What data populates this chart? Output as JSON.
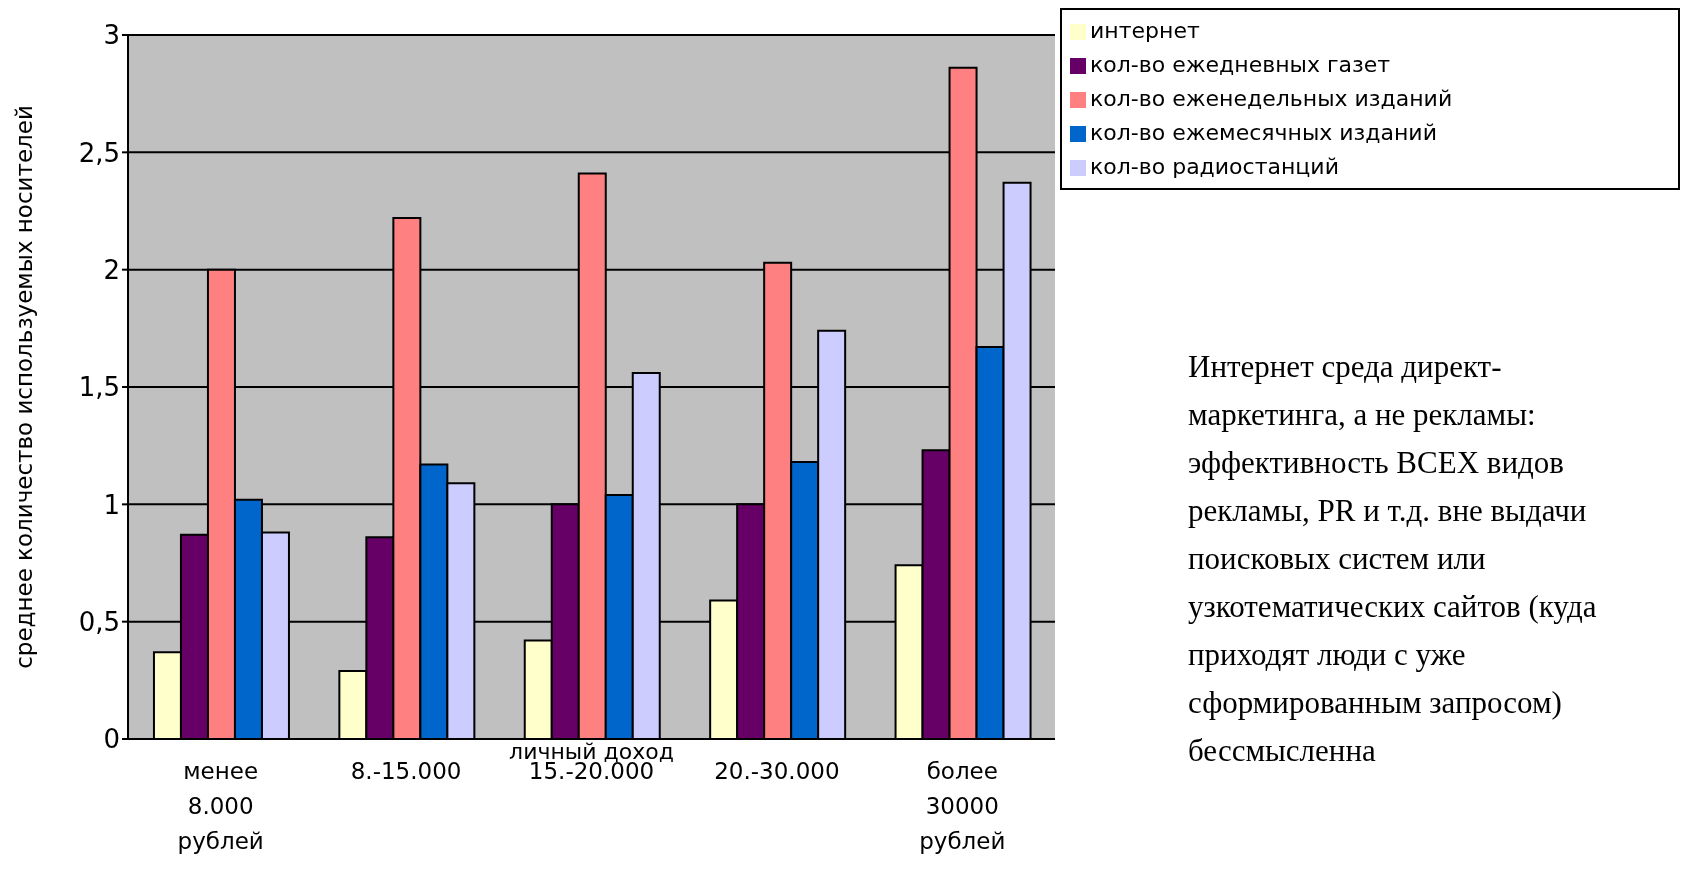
{
  "chart_data": {
    "type": "bar",
    "xlabel": "личный доход",
    "ylabel": "среднее количество используемых носителей",
    "categories": [
      "менее 8.000 рублей",
      "8.-15.000",
      "15.-20.000",
      "20.-30.000",
      "более 30000 рублей"
    ],
    "series": [
      {
        "name": "интернет",
        "color": "#ffffcc",
        "values": [
          0.37,
          0.29,
          0.42,
          0.59,
          0.74
        ]
      },
      {
        "name": "кол-во ежедневных газет",
        "color": "#660066",
        "values": [
          0.87,
          0.86,
          1.0,
          1.0,
          1.23
        ]
      },
      {
        "name": "кол-во еженедельных изданий",
        "color": "#ff8080",
        "values": [
          2.0,
          2.22,
          2.41,
          2.03,
          2.86
        ]
      },
      {
        "name": "кол-во ежемесячных изданий",
        "color": "#0066cc",
        "values": [
          1.02,
          1.17,
          1.04,
          1.18,
          1.67
        ]
      },
      {
        "name": "кол-во радиостанций",
        "color": "#ccccff",
        "values": [
          0.88,
          1.09,
          1.56,
          1.74,
          2.37
        ]
      }
    ],
    "ylim": [
      0,
      3
    ],
    "yticks": [
      0,
      {
        "value": 0.5,
        "label": "0,5"
      },
      1,
      {
        "value": 1.5,
        "label": "1,5"
      },
      2,
      {
        "value": 2.5,
        "label": "2,5"
      },
      3
    ],
    "grid": "y",
    "legend": "top right",
    "annotations": [
      "Интернет среда директ-маркетинга,  а не рекламы: эффективность ВСЕХ видов рекламы, PR и т.д. вне выдачи поисковых систем или узкотематических сайтов (куда приходят люди с уже сформированным запросом) бессмысленна"
    ]
  }
}
